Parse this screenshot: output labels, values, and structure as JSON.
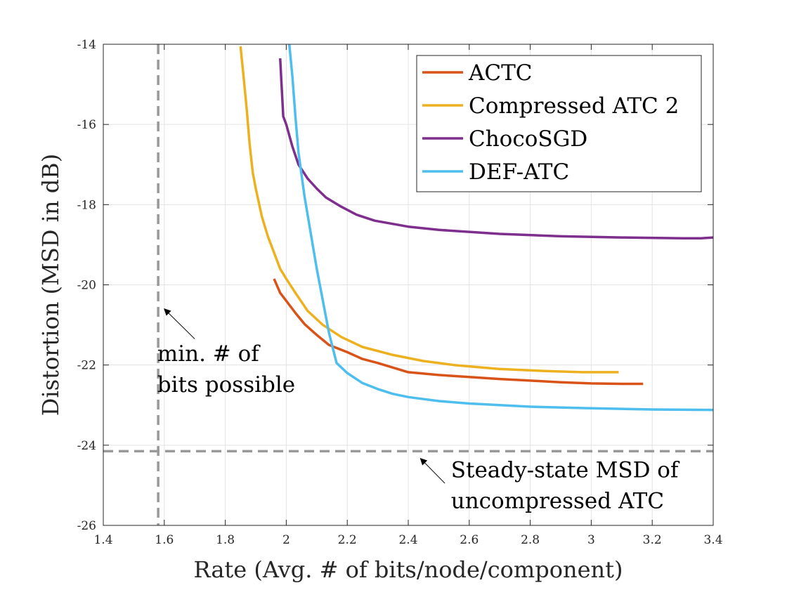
{
  "chart_data": {
    "type": "line",
    "title": "",
    "xlabel": "Rate (Avg. # of bits/node/component)",
    "ylabel": "Distortion (MSD in dB)",
    "xlim": [
      1.4,
      3.4
    ],
    "ylim": [
      -26,
      -14
    ],
    "xticks": [
      1.4,
      1.6,
      1.8,
      2,
      2.2,
      2.4,
      2.6,
      2.8,
      3,
      3.2,
      3.4
    ],
    "xtick_labels": [
      "1.4",
      "1.6",
      "1.8",
      "2",
      "2.2",
      "2.4",
      "2.6",
      "2.8",
      "3",
      "3.2",
      "3.4"
    ],
    "yticks": [
      -14,
      -16,
      -18,
      -20,
      -22,
      -24,
      -26
    ],
    "ytick_labels": [
      "-14",
      "-16",
      "-18",
      "-20",
      "-22",
      "-24",
      "-26"
    ],
    "grid": true,
    "legend_position": "top-right",
    "series": [
      {
        "name": "ACTC",
        "color": "#D95319",
        "x": [
          1.96,
          1.98,
          2.0,
          2.03,
          2.06,
          2.1,
          2.14,
          2.2,
          2.25,
          2.3,
          2.4,
          2.5,
          2.6,
          2.7,
          2.8,
          2.9,
          3.0,
          3.1,
          3.17
        ],
        "y": [
          -19.85,
          -20.2,
          -20.4,
          -20.7,
          -20.98,
          -21.25,
          -21.5,
          -21.68,
          -21.85,
          -21.95,
          -22.18,
          -22.25,
          -22.3,
          -22.35,
          -22.39,
          -22.43,
          -22.46,
          -22.47,
          -22.47
        ]
      },
      {
        "name": "Compressed ATC 2",
        "color": "#EDB120",
        "x": [
          1.85,
          1.86,
          1.87,
          1.88,
          1.89,
          1.9,
          1.92,
          1.94,
          1.96,
          1.98,
          2.0,
          2.03,
          2.07,
          2.12,
          2.18,
          2.25,
          2.35,
          2.45,
          2.55,
          2.7,
          2.85,
          2.97,
          3.09
        ],
        "y": [
          -14.05,
          -14.8,
          -15.6,
          -16.5,
          -17.2,
          -17.6,
          -18.3,
          -18.8,
          -19.2,
          -19.6,
          -19.85,
          -20.2,
          -20.65,
          -21.0,
          -21.3,
          -21.55,
          -21.75,
          -21.9,
          -22.0,
          -22.1,
          -22.15,
          -22.18,
          -22.18
        ]
      },
      {
        "name": "ChocoSGD",
        "color": "#7E2F8E",
        "x": [
          1.98,
          1.99,
          2.0,
          2.02,
          2.04,
          2.07,
          2.1,
          2.13,
          2.18,
          2.23,
          2.29,
          2.4,
          2.5,
          2.7,
          2.9,
          3.1,
          3.3,
          3.36,
          3.4
        ],
        "y": [
          -14.35,
          -15.8,
          -16.0,
          -16.55,
          -17.0,
          -17.35,
          -17.6,
          -17.82,
          -18.05,
          -18.25,
          -18.4,
          -18.55,
          -18.63,
          -18.73,
          -18.79,
          -18.82,
          -18.84,
          -18.84,
          -18.82
        ]
      },
      {
        "name": "DEF-ATC",
        "color": "#4DBEEE",
        "x": [
          2.01,
          2.02,
          2.03,
          2.04,
          2.06,
          2.08,
          2.1,
          2.12,
          2.14,
          2.165,
          2.2,
          2.25,
          2.3,
          2.35,
          2.4,
          2.5,
          2.6,
          2.8,
          3.0,
          3.2,
          3.4
        ],
        "y": [
          -14.0,
          -14.8,
          -15.8,
          -16.7,
          -17.8,
          -18.7,
          -19.6,
          -20.4,
          -21.2,
          -21.95,
          -22.2,
          -22.45,
          -22.6,
          -22.72,
          -22.8,
          -22.9,
          -22.96,
          -23.04,
          -23.08,
          -23.11,
          -23.12
        ]
      }
    ],
    "reference_lines": [
      {
        "orientation": "vertical",
        "value": 1.58,
        "color": "#999999",
        "style": "dashed"
      },
      {
        "orientation": "horizontal",
        "value": -24.15,
        "color": "#999999",
        "style": "dashed"
      }
    ],
    "annotations": [
      {
        "lines": [
          "min. # of",
          "bits possible"
        ],
        "arrow_tip": [
          1.6,
          -20.6
        ],
        "arrow_tail": [
          1.7,
          -21.35
        ],
        "text_anchor": [
          1.6,
          -21.9
        ]
      },
      {
        "lines": [
          "Steady-state MSD of",
          "uncompressed ATC"
        ],
        "arrow_tip": [
          2.44,
          -24.33
        ],
        "arrow_tail": [
          2.52,
          -24.95
        ],
        "text_anchor": [
          2.54,
          -24.8
        ]
      }
    ]
  }
}
